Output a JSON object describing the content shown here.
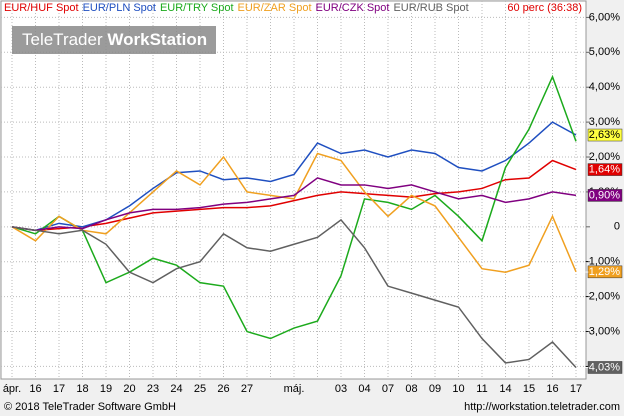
{
  "chart_data": {
    "type": "line",
    "subtitle": "60 perc (36:38)",
    "categories": [
      "ápr.",
      "16",
      "17",
      "18",
      "19",
      "20",
      "23",
      "24",
      "25",
      "26",
      "27",
      null,
      "máj.",
      null,
      "03",
      "04",
      "07",
      "08",
      "09",
      "10",
      "11",
      "14",
      "15",
      "16",
      "17"
    ],
    "series": [
      {
        "name": "EUR/HUF Spot",
        "color": "#e00000",
        "values": [
          0,
          -0.1,
          -0.05,
          0.0,
          0.1,
          0.25,
          0.4,
          0.45,
          0.5,
          0.55,
          0.55,
          0.6,
          0.75,
          0.9,
          1.0,
          0.95,
          0.9,
          0.85,
          0.95,
          1.0,
          1.1,
          1.35,
          1.4,
          1.9,
          1.64
        ],
        "value_labels": [
          null,
          null,
          null,
          null,
          null,
          null,
          null,
          null,
          null,
          null,
          null,
          null,
          null,
          null,
          null,
          null,
          null,
          null,
          null,
          null,
          null,
          null,
          null,
          null,
          "1,64%"
        ]
      },
      {
        "name": "EUR/PLN Spot",
        "color": "#1f4fc0",
        "values": [
          0,
          -0.1,
          0.1,
          0.0,
          0.2,
          0.6,
          1.1,
          1.55,
          1.6,
          1.35,
          1.4,
          1.3,
          1.5,
          2.4,
          2.1,
          2.2,
          2.0,
          2.2,
          2.1,
          1.7,
          1.6,
          1.9,
          2.4,
          3.0,
          2.63
        ],
        "value_labels": [
          null,
          null,
          null,
          null,
          null,
          null,
          null,
          null,
          null,
          null,
          null,
          null,
          null,
          null,
          null,
          null,
          null,
          null,
          null,
          null,
          null,
          null,
          null,
          null,
          "2,63%"
        ]
      },
      {
        "name": "EUR/TRY Spot",
        "color": "#1caa1c",
        "values": [
          0,
          -0.2,
          0.3,
          -0.1,
          -1.6,
          -1.3,
          -0.9,
          -1.1,
          -1.6,
          -1.7,
          -3.0,
          -3.2,
          -2.9,
          -2.7,
          -1.4,
          0.8,
          0.7,
          0.5,
          0.9,
          0.3,
          -0.4,
          1.7,
          2.8,
          4.3,
          2.45
        ]
      },
      {
        "name": "EUR/ZAR Spot",
        "color": "#f0a020",
        "values": [
          0,
          -0.4,
          0.3,
          -0.1,
          -0.2,
          0.4,
          1.0,
          1.6,
          1.2,
          2.0,
          1.0,
          0.9,
          0.8,
          2.1,
          1.9,
          1.0,
          0.3,
          0.9,
          0.6,
          -0.3,
          -1.2,
          -1.3,
          -1.1,
          0.3,
          -1.29
        ],
        "value_labels": [
          null,
          null,
          null,
          null,
          null,
          null,
          null,
          null,
          null,
          null,
          null,
          null,
          null,
          null,
          null,
          null,
          null,
          null,
          null,
          null,
          null,
          null,
          null,
          null,
          "-1,29%"
        ]
      },
      {
        "name": "EUR/CZK Spot",
        "color": "#800080",
        "values": [
          0,
          -0.1,
          0.0,
          -0.05,
          0.2,
          0.4,
          0.5,
          0.5,
          0.55,
          0.65,
          0.7,
          0.8,
          0.9,
          1.4,
          1.2,
          1.2,
          1.1,
          1.2,
          1.0,
          0.8,
          0.9,
          0.7,
          0.8,
          1.0,
          0.9
        ],
        "value_labels": [
          null,
          null,
          null,
          null,
          null,
          null,
          null,
          null,
          null,
          null,
          null,
          null,
          null,
          null,
          null,
          null,
          null,
          null,
          null,
          null,
          null,
          null,
          null,
          null,
          "0,90%"
        ]
      },
      {
        "name": "EUR/RUB Spot",
        "color": "#606060",
        "values": [
          0,
          -0.1,
          -0.2,
          -0.1,
          -0.5,
          -1.3,
          -1.6,
          -1.2,
          -1.0,
          -0.2,
          -0.6,
          -0.7,
          -0.5,
          -0.3,
          0.2,
          -0.6,
          -1.7,
          -1.9,
          -2.1,
          -2.3,
          -3.2,
          -3.9,
          -3.8,
          -3.3,
          -4.03
        ],
        "value_labels": [
          null,
          null,
          null,
          null,
          null,
          null,
          null,
          null,
          null,
          null,
          null,
          null,
          null,
          null,
          null,
          null,
          null,
          null,
          null,
          null,
          null,
          null,
          null,
          null,
          "-4,03%"
        ]
      }
    ],
    "ylim": [
      -4.36,
      6.47
    ],
    "yticks": [
      {
        "value": 6,
        "label": "6,00%"
      },
      {
        "value": 5,
        "label": "5,00%"
      },
      {
        "value": 4,
        "label": "4,00%"
      },
      {
        "value": 3,
        "label": "3,00%"
      },
      {
        "value": 2,
        "label": "2,00%"
      },
      {
        "value": 1,
        "label": "1,00%"
      },
      0,
      {
        "value": -1,
        "label": "-1,00%"
      },
      {
        "value": -2,
        "label": "-2,00%"
      },
      {
        "value": -3,
        "label": "-3,00%"
      },
      {
        "value": -4,
        "label": "-4,00%"
      }
    ],
    "grid": true
  },
  "watermark": {
    "brand": "TeleTrader",
    "product": "WorkStation"
  },
  "footer": {
    "copyright": "© 2018 TeleTrader Software GmbH",
    "url": "http://workstation.teletrader.com"
  }
}
